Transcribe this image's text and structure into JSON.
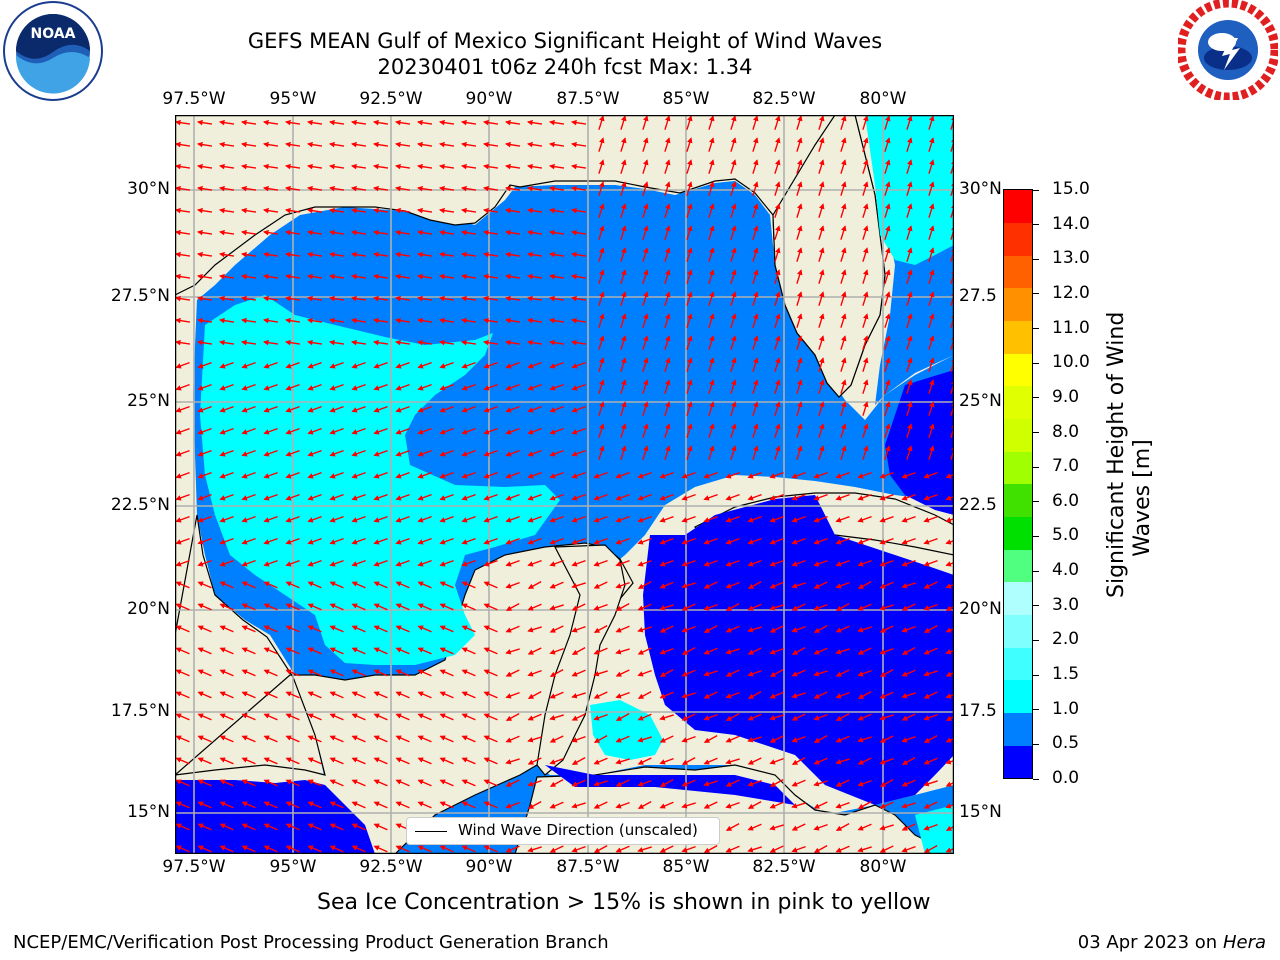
{
  "title": {
    "line1": "GEFS MEAN Gulf of Mexico Significant Height of Wind Waves",
    "line2": "20230401 t06z 240h fcst   Max: 1.34"
  },
  "logos": {
    "left": {
      "icon": "noaa-logo",
      "text": "NOAA"
    },
    "right": {
      "icon": "national-weather-service-logo"
    }
  },
  "axes": {
    "lon_ticks": [
      "97.5°W",
      "95°W",
      "92.5°W",
      "90°W",
      "87.5°W",
      "85°W",
      "82.5°W",
      "80°W"
    ],
    "lat_ticks": [
      "30°N",
      "27.5°N",
      "25°N",
      "22.5°N",
      "20°N",
      "17.5°N",
      "15°N"
    ],
    "lat_ticks_right": [
      "30°N",
      "27.5",
      "25°N",
      "22.5",
      "20°N",
      "17.5",
      "15°N"
    ]
  },
  "legend": {
    "label": "Wind Wave Direction (unscaled)"
  },
  "colorbar": {
    "label_line1": "Significant Height of Wind",
    "label_line2": "Waves [m]",
    "ticks": [
      "15.0",
      "14.0",
      "13.0",
      "12.0",
      "11.0",
      "10.0",
      "9.0",
      "8.0",
      "7.0",
      "6.0",
      "5.0",
      "4.0",
      "3.0",
      "2.0",
      "1.5",
      "1.0",
      "0.5",
      "0.0"
    ],
    "colors": [
      "#0000ff",
      "#0080ff",
      "#00ffff",
      "#40ffff",
      "#80ffff",
      "#b0ffff",
      "#50ff80",
      "#00e000",
      "#40e000",
      "#a0ff00",
      "#d0ff00",
      "#e0ff00",
      "#ffff00",
      "#ffc000",
      "#ff9000",
      "#ff6000",
      "#ff3000",
      "#ff0000"
    ]
  },
  "note": "Sea Ice Concentration > 15% is shown in pink to yellow",
  "footer": {
    "left": "NCEP/EMC/Verification Post Processing Product Generation Branch",
    "date": "03 Apr 2023 on ",
    "host": "Hera"
  },
  "map_colors": {
    "land": "#efefdc",
    "wave_0_05": "#0000ff",
    "wave_05_10": "#0080ff",
    "wave_10_15": "#00ffff",
    "arrow": "#ff0000",
    "grid": "#b0b0b0"
  },
  "chart_data": {
    "type": "map",
    "lon_range": [
      "98.5°W",
      "78.5°W"
    ],
    "lat_range": [
      "14°N",
      "31.5°N"
    ],
    "grid": true,
    "max_value": 1.34
  }
}
